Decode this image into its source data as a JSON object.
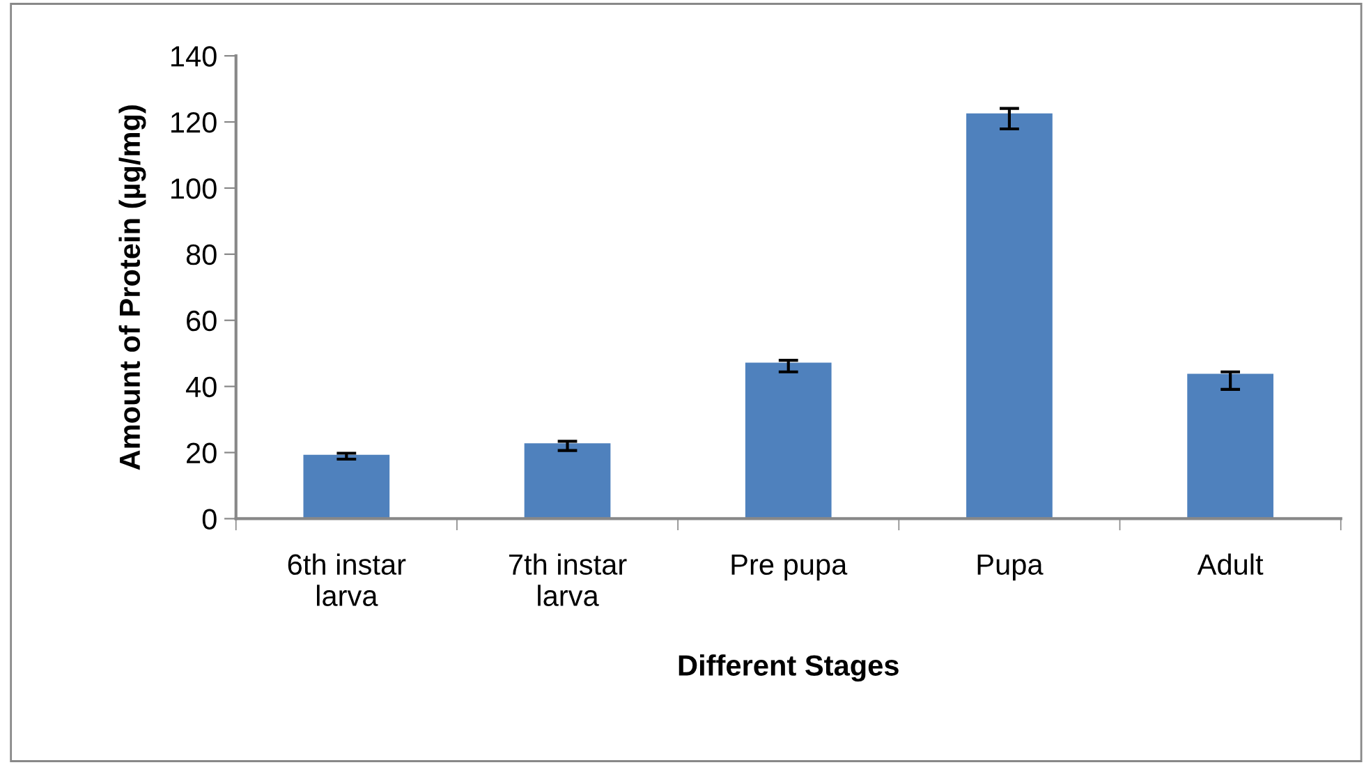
{
  "chart_data": {
    "type": "bar",
    "xlabel": "Different Stages",
    "ylabel": "Amount of Protein (µg/mg)",
    "categories": [
      "6th instar\nlarva",
      "7th instar\nlarva",
      "Pre pupa",
      "Pupa",
      "Adult"
    ],
    "values": [
      19.3,
      22.8,
      47.2,
      122.6,
      43.8
    ],
    "errors": [
      [
        18.0,
        19.8
      ],
      [
        20.6,
        23.4
      ],
      [
        44.4,
        47.9
      ],
      [
        117.9,
        124.1
      ],
      [
        39.1,
        44.4
      ]
    ],
    "color": "#4f81bd",
    "ylim": [
      0,
      140
    ],
    "yticks": [
      0,
      20,
      40,
      60,
      80,
      100,
      120,
      140
    ],
    "grid": false,
    "legend": false
  }
}
